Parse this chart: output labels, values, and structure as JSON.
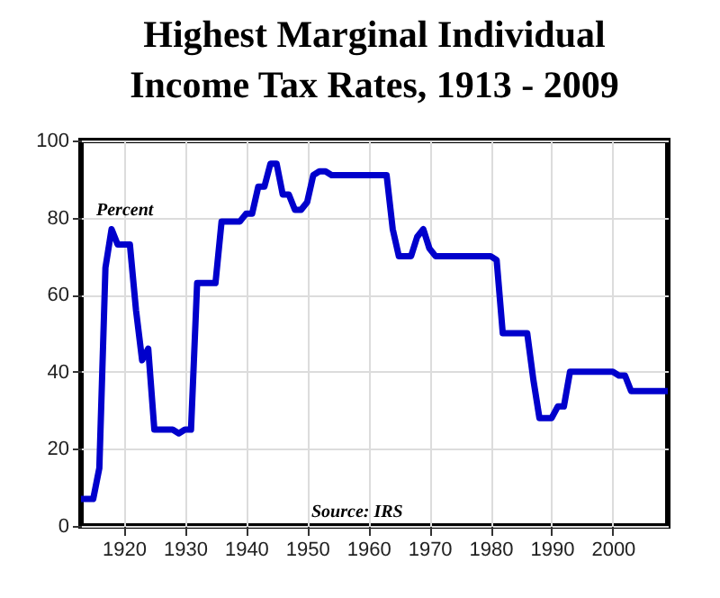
{
  "chart_data": {
    "type": "line",
    "title": "Highest Marginal Individual Income Tax Rates, 1913 - 2009",
    "ylabel": "Percent",
    "annotations": [
      "Source: IRS"
    ],
    "x": [
      1913,
      1914,
      1915,
      1916,
      1917,
      1918,
      1919,
      1920,
      1921,
      1922,
      1923,
      1924,
      1925,
      1926,
      1927,
      1928,
      1929,
      1930,
      1931,
      1932,
      1933,
      1934,
      1935,
      1936,
      1937,
      1938,
      1939,
      1940,
      1941,
      1942,
      1943,
      1944,
      1945,
      1946,
      1947,
      1948,
      1949,
      1950,
      1951,
      1952,
      1953,
      1954,
      1955,
      1956,
      1957,
      1958,
      1959,
      1960,
      1961,
      1962,
      1963,
      1964,
      1965,
      1966,
      1967,
      1968,
      1969,
      1970,
      1971,
      1972,
      1973,
      1974,
      1975,
      1976,
      1977,
      1978,
      1979,
      1980,
      1981,
      1982,
      1983,
      1984,
      1985,
      1986,
      1987,
      1988,
      1989,
      1990,
      1991,
      1992,
      1993,
      1994,
      1995,
      1996,
      1997,
      1998,
      1999,
      2000,
      2001,
      2002,
      2003,
      2004,
      2005,
      2006,
      2007,
      2008,
      2009
    ],
    "series": [
      {
        "color": "#0000cc",
        "values": [
          7,
          7,
          7,
          15,
          67,
          77,
          73,
          73,
          73,
          56,
          43,
          46,
          25,
          25,
          25,
          25,
          24,
          25,
          25,
          63,
          63,
          63,
          63,
          79,
          79,
          79,
          79,
          81,
          81,
          88,
          88,
          94,
          94,
          86,
          86,
          82,
          82,
          84,
          91,
          92,
          92,
          91,
          91,
          91,
          91,
          91,
          91,
          91,
          91,
          91,
          91,
          77,
          70,
          70,
          70,
          75,
          77,
          72,
          70,
          70,
          70,
          70,
          70,
          70,
          70,
          70,
          70,
          70,
          69,
          50,
          50,
          50,
          50,
          50,
          38,
          28,
          28,
          28,
          31,
          31,
          40,
          40,
          40,
          40,
          40,
          40,
          40,
          40,
          39,
          39,
          35,
          35,
          35,
          35,
          35,
          35,
          35
        ]
      }
    ],
    "xlim": [
      1913,
      2009
    ],
    "xticks": [
      1920,
      1930,
      1940,
      1950,
      1960,
      1970,
      1980,
      1990,
      2000
    ],
    "ylim": [
      0,
      100
    ],
    "yticks": [
      0,
      20,
      40,
      60,
      80,
      100
    ],
    "grid": true,
    "line_style": "solid",
    "marker": "none"
  }
}
